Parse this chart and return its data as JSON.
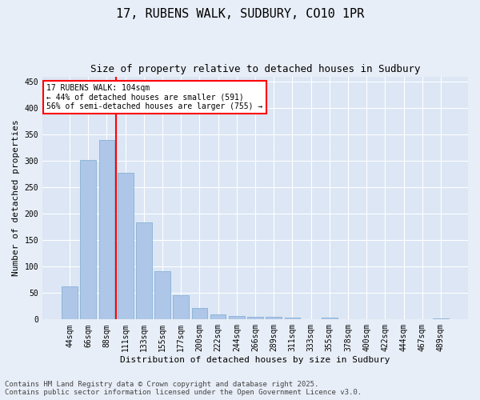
{
  "title": "17, RUBENS WALK, SUDBURY, CO10 1PR",
  "subtitle": "Size of property relative to detached houses in Sudbury",
  "xlabel": "Distribution of detached houses by size in Sudbury",
  "ylabel": "Number of detached properties",
  "categories": [
    "44sqm",
    "66sqm",
    "88sqm",
    "111sqm",
    "133sqm",
    "155sqm",
    "177sqm",
    "200sqm",
    "222sqm",
    "244sqm",
    "266sqm",
    "289sqm",
    "311sqm",
    "333sqm",
    "355sqm",
    "378sqm",
    "400sqm",
    "422sqm",
    "444sqm",
    "467sqm",
    "489sqm"
  ],
  "values": [
    63,
    302,
    340,
    277,
    184,
    92,
    46,
    21,
    10,
    6,
    5,
    5,
    3,
    0,
    3,
    0,
    0,
    0,
    1,
    0,
    2
  ],
  "bar_color": "#aec6e8",
  "bar_edge_color": "#7aaad0",
  "vline_x": 2.5,
  "vline_color": "red",
  "annotation_text": "17 RUBENS WALK: 104sqm\n← 44% of detached houses are smaller (591)\n56% of semi-detached houses are larger (755) →",
  "annotation_box_color": "white",
  "annotation_box_edge_color": "red",
  "ylim": [
    0,
    460
  ],
  "yticks": [
    0,
    50,
    100,
    150,
    200,
    250,
    300,
    350,
    400,
    450
  ],
  "footer": "Contains HM Land Registry data © Crown copyright and database right 2025.\nContains public sector information licensed under the Open Government Licence v3.0.",
  "background_color": "#e8eef7",
  "plot_background_color": "#dce6f5",
  "grid_color": "white",
  "title_fontsize": 11,
  "subtitle_fontsize": 9,
  "axis_label_fontsize": 8,
  "tick_fontsize": 7,
  "annotation_fontsize": 7,
  "footer_fontsize": 6.5
}
